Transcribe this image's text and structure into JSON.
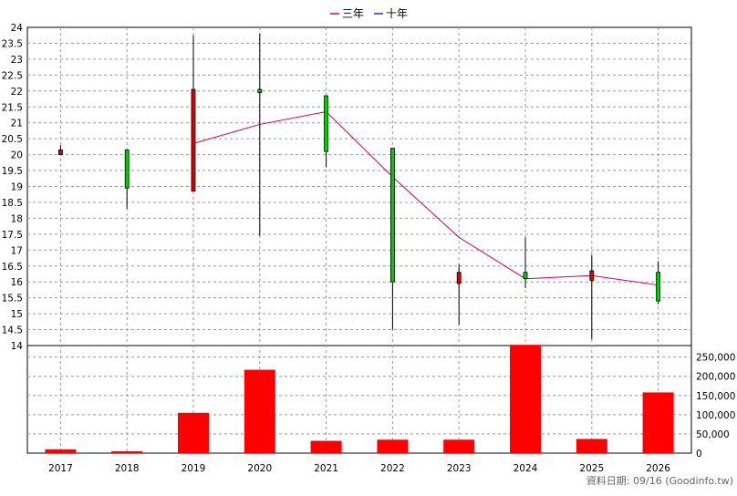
{
  "chart_data": {
    "type": "candlestick+bar",
    "legend": [
      {
        "label": "三年",
        "color": "#e0005a"
      },
      {
        "label": "十年",
        "color": "#2b2bd0"
      }
    ],
    "categories": [
      "2017",
      "2018",
      "2019",
      "2020",
      "2021",
      "2022",
      "2023",
      "2024",
      "2025",
      "2026"
    ],
    "price": {
      "ylim": [
        14,
        24
      ],
      "ticks": [
        "14",
        "14.5",
        "15",
        "15.5",
        "16",
        "16.5",
        "17",
        "17.5",
        "18",
        "18.5",
        "19",
        "19.5",
        "20",
        "20.5",
        "21",
        "21.5",
        "22",
        "22.5",
        "23",
        "23.5",
        "24"
      ],
      "candles": [
        {
          "open": 20.15,
          "close": 20.0,
          "high": 20.3,
          "low": 20.0
        },
        {
          "open": 18.95,
          "close": 20.15,
          "high": 20.15,
          "low": 18.3
        },
        {
          "open": 22.05,
          "close": 18.85,
          "high": 23.75,
          "low": 18.85
        },
        {
          "open": 21.95,
          "close": 22.05,
          "high": 23.8,
          "low": 17.45
        },
        {
          "open": 20.1,
          "close": 21.85,
          "high": 21.85,
          "low": 19.6
        },
        {
          "open": 16.0,
          "close": 20.2,
          "high": 20.2,
          "low": 14.5
        },
        {
          "open": 16.3,
          "close": 15.95,
          "high": 16.55,
          "low": 14.65
        },
        {
          "open": 16.1,
          "close": 16.3,
          "high": 17.4,
          "low": 15.8
        },
        {
          "open": 16.35,
          "close": 16.05,
          "high": 16.85,
          "low": 14.2
        },
        {
          "open": 15.4,
          "close": 16.3,
          "high": 16.65,
          "low": 15.3
        }
      ],
      "up_color": "#00cc00",
      "down_color": "#dd0000"
    },
    "line_series": {
      "name": "三年",
      "color": "#cc0055",
      "x_index": [
        2,
        3,
        4,
        5,
        6,
        7,
        8,
        9
      ],
      "values": [
        20.35,
        20.95,
        21.35,
        19.3,
        17.4,
        16.1,
        16.2,
        15.9
      ]
    },
    "volume": {
      "ylim": [
        0,
        280000
      ],
      "ticks": [
        "0",
        "50,000",
        "100,000",
        "150,000",
        "200,000",
        "250,000"
      ],
      "values": [
        10000,
        5000,
        105000,
        217000,
        32000,
        35000,
        35000,
        282000,
        37000,
        158000
      ],
      "color": "#ff0000"
    },
    "grid": true,
    "footer": "資料日期: 09/16  (Goodinfo.tw)"
  }
}
